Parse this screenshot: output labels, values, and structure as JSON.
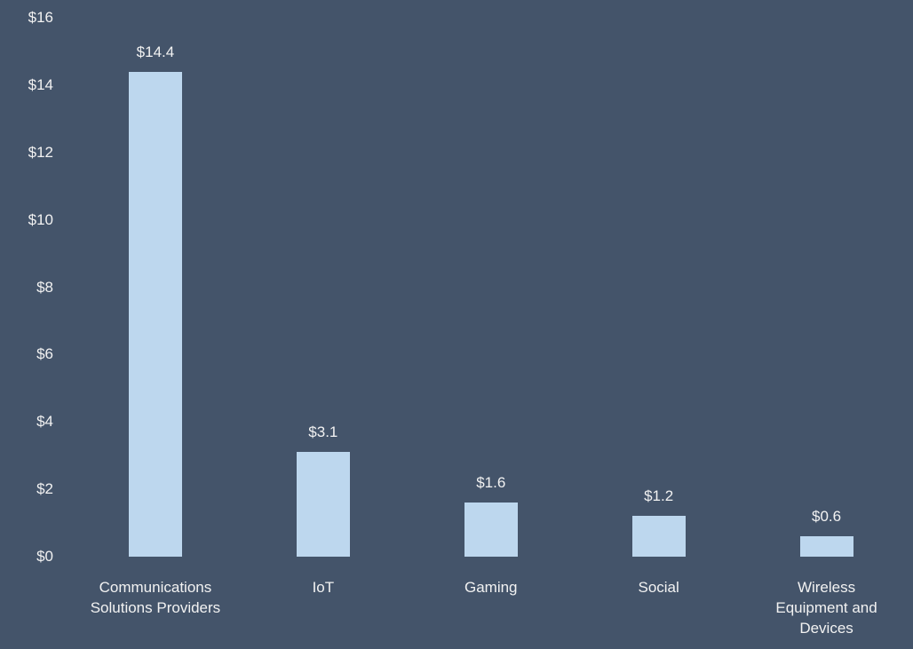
{
  "chart_data": {
    "type": "bar",
    "categories": [
      "Communications Solutions Providers",
      "IoT",
      "Gaming",
      "Social",
      "Wireless Equipment and Devices"
    ],
    "values": [
      14.4,
      3.1,
      1.6,
      1.2,
      0.6
    ],
    "value_labels": [
      "$14.4",
      "$3.1",
      "$1.6",
      "$1.2",
      "$0.6"
    ],
    "color": "#bdd7ee",
    "ylim": [
      0,
      16
    ],
    "yticks": [
      {
        "value": 0,
        "label": "$0"
      },
      {
        "value": 2,
        "label": "$2"
      },
      {
        "value": 4,
        "label": "$4"
      },
      {
        "value": 6,
        "label": "$6"
      },
      {
        "value": 8,
        "label": "$8"
      },
      {
        "value": 10,
        "label": "$10"
      },
      {
        "value": 12,
        "label": "$12"
      },
      {
        "value": 14,
        "label": "$14"
      },
      {
        "value": 16,
        "label": "$16"
      }
    ],
    "grid": false
  }
}
